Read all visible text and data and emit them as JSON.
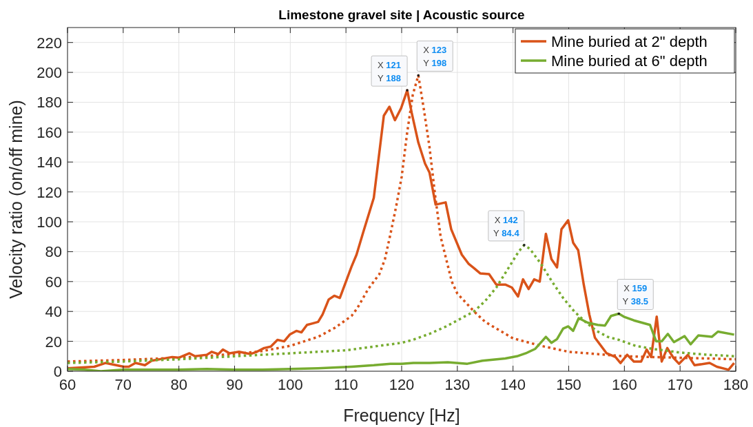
{
  "chart_data": {
    "type": "line",
    "title": "Limestone gravel site | Acoustic source",
    "xlabel": "Frequency [Hz]",
    "ylabel": "Velocity ratio (on/off mine)",
    "xlim": [
      60,
      180
    ],
    "xticks": [
      60,
      70,
      80,
      90,
      100,
      110,
      120,
      130,
      140,
      150,
      160,
      170,
      180
    ],
    "ylim": [
      0,
      230
    ],
    "yticks": [
      0,
      20,
      40,
      60,
      80,
      100,
      120,
      140,
      160,
      180,
      200,
      220
    ],
    "grid": true,
    "legend": "top right",
    "line_style": "solid",
    "marker": "none",
    "series": [
      {
        "name": "Mine buried at 2\" depth",
        "color": "#d95319",
        "x": [
          60,
          64.8,
          66.8,
          70.1,
          71,
          72.2,
          73.9,
          75.1,
          78.8,
          80,
          81.9,
          82.9,
          85,
          85.9,
          87.1,
          87.9,
          89.1,
          90.8,
          92.8,
          94,
          95.3,
          96.5,
          97.7,
          98.9,
          99.9,
          101.1,
          102,
          103,
          104,
          105,
          105.8,
          106.9,
          107.9,
          108.9,
          110,
          111,
          111.9,
          113.1,
          115,
          116.8,
          117.8,
          118.8,
          119.9,
          121,
          121.8,
          123,
          124.2,
          125,
          126.1,
          127.9,
          128.9,
          130.8,
          132,
          133,
          134.1,
          135.7,
          137,
          138.6,
          139.8,
          140.9,
          141.8,
          142.8,
          143.8,
          144.8,
          145.9,
          146.9,
          147.9,
          148.7,
          149.9,
          150.8,
          151.7,
          152.7,
          153.7,
          154.7,
          156.8,
          158.4,
          159.3,
          160.5,
          161.7,
          163,
          164,
          164.8,
          165.8,
          166.7,
          167.7,
          168.8,
          169.8,
          171.4,
          172.6,
          175.3,
          176.6,
          178.7,
          179.7
        ],
        "values": [
          2,
          3,
          5.5,
          3,
          3,
          5.5,
          4,
          7,
          9.5,
          9,
          12,
          10,
          11,
          13,
          11.5,
          14.5,
          12,
          13,
          11.5,
          13,
          15.5,
          16.5,
          21,
          20,
          24.5,
          27,
          26,
          31,
          32,
          33,
          38,
          48,
          50.5,
          49,
          60,
          70,
          78,
          93,
          116,
          171,
          177,
          168,
          176,
          188,
          173,
          153,
          139,
          133,
          111.5,
          113,
          95,
          78,
          72,
          69,
          65.5,
          65,
          58,
          58,
          56,
          50,
          61.5,
          55,
          61.5,
          60,
          92,
          75,
          69.5,
          95,
          101,
          86,
          81,
          58,
          38,
          22.5,
          12,
          9.5,
          5.5,
          11,
          6.5,
          6.5,
          14.5,
          9.5,
          36.5,
          6.5,
          15.5,
          9,
          5,
          11,
          4,
          5.5,
          3,
          1,
          5.5
        ]
      },
      {
        "color": "#d95319",
        "line_style": "dotted",
        "x": [
          60,
          70,
          80,
          90,
          95,
          100,
          105,
          108,
          111,
          112,
          114,
          116,
          117,
          118,
          119,
          120,
          121,
          122,
          123,
          124,
          125,
          126,
          127,
          128,
          129,
          130,
          132,
          133,
          135,
          140,
          145,
          150,
          155,
          160,
          170,
          180
        ],
        "values": [
          6.5,
          7.5,
          9,
          11.5,
          13.5,
          17,
          23,
          29,
          37,
          42,
          55,
          65,
          75,
          92,
          110,
          130,
          160,
          185,
          198,
          175,
          150,
          118,
          90,
          75,
          60,
          52,
          44,
          40,
          33,
          22,
          17,
          13,
          11.5,
          10,
          9,
          8
        ]
      },
      {
        "name": "Mine buried at 6\" depth",
        "color": "#77ac30",
        "x": [
          60,
          63,
          66,
          70,
          75,
          80,
          85,
          90,
          95,
          100,
          105,
          111,
          115,
          118,
          120,
          122.1,
          125,
          128.3,
          131.8,
          134.5,
          138.6,
          140.7,
          142.3,
          144,
          145.9,
          146.9,
          147.9,
          149,
          149.9,
          150.8,
          151.8,
          153.4,
          155.2,
          156.5,
          157.6,
          159,
          159.9,
          161.7,
          164.6,
          165.7,
          166.7,
          167.8,
          168.9,
          170.8,
          171.9,
          173.3,
          175.7,
          176.8,
          179.7
        ],
        "values": [
          1.5,
          1,
          0,
          1,
          1,
          1,
          1.5,
          1,
          1,
          1.5,
          2,
          3,
          4,
          5,
          5,
          5.5,
          5.5,
          6,
          5,
          7,
          8.5,
          10,
          12,
          15,
          23,
          19,
          21.5,
          28.5,
          30,
          27,
          35.5,
          32.5,
          31,
          30.5,
          37,
          38.5,
          36.5,
          34,
          31,
          20,
          20,
          25,
          19.5,
          23.5,
          18,
          24,
          23,
          26.5,
          24.5
        ]
      },
      {
        "color": "#77ac30",
        "line_style": "dotted",
        "x": [
          60,
          70,
          80,
          90,
          100,
          110,
          115,
          120,
          122,
          125,
          128,
          130,
          133,
          135,
          137,
          139,
          140,
          141,
          142,
          143,
          144,
          145,
          147,
          149,
          151,
          153,
          155,
          157,
          159,
          162,
          165,
          170,
          175,
          180
        ],
        "values": [
          5.5,
          6.5,
          8,
          10,
          12,
          14,
          16.5,
          19,
          21,
          25,
          30,
          34,
          40,
          47,
          56,
          68,
          74,
          80,
          84.4,
          82,
          77,
          72,
          60,
          49,
          40,
          33,
          27,
          23,
          21,
          17,
          15,
          12.5,
          11,
          10
        ]
      }
    ],
    "annotations": [
      {
        "text": "X 121\nY 188",
        "x": 121,
        "y": 188
      },
      {
        "text": "X 123\nY 198",
        "x": 123,
        "y": 198
      },
      {
        "text": "X 142\nY 84.4",
        "x": 142,
        "y": 84.4
      },
      {
        "text": "X 159\nY 38.5",
        "x": 159,
        "y": 38.5
      }
    ]
  }
}
